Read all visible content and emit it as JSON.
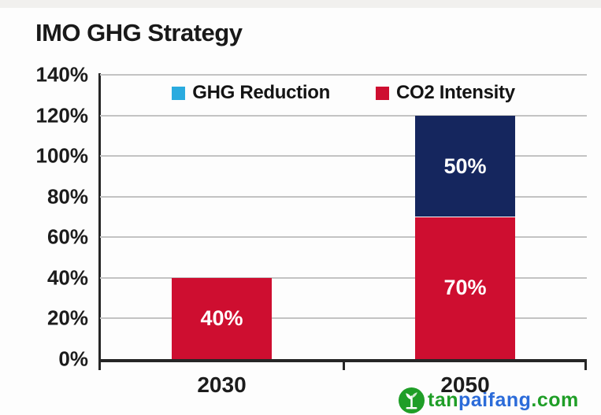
{
  "title": "IMO GHG Strategy",
  "chart_data": {
    "type": "bar",
    "stacked": true,
    "title": "IMO GHG Strategy",
    "categories": [
      "2030",
      "2050"
    ],
    "series": [
      {
        "name": "CO2 Intensity",
        "color": "#ce0e30",
        "values": [
          40,
          70
        ],
        "data_labels": [
          "40%",
          "70%"
        ]
      },
      {
        "name": "GHG Reduction",
        "color": "#15265e",
        "values": [
          0,
          50
        ],
        "data_labels": [
          "",
          "50%"
        ]
      }
    ],
    "legend": [
      {
        "label": "GHG Reduction",
        "swatch_color": "#2aabdf"
      },
      {
        "label": "CO2 Intensity",
        "swatch_color": "#ce0e30"
      }
    ],
    "legend_position": "top-center-inside",
    "grid": true,
    "ylim": [
      0,
      140
    ],
    "ytick_step": 20,
    "yticks": [
      {
        "value": 0,
        "label": "0%"
      },
      {
        "value": 20,
        "label": "20%"
      },
      {
        "value": 40,
        "label": "40%"
      },
      {
        "value": 60,
        "label": "60%"
      },
      {
        "value": 80,
        "label": "80%"
      },
      {
        "value": 100,
        "label": "100%"
      },
      {
        "value": 120,
        "label": "120%"
      },
      {
        "value": 140,
        "label": "140%"
      }
    ]
  },
  "watermark": {
    "logo": "tanpaifang-leaf-logo",
    "segments": [
      {
        "text": "tan",
        "color": "#1f9e27"
      },
      {
        "text": "paifang",
        "color": "#2b6bd9"
      },
      {
        "text": ".com",
        "color": "#1f9e27"
      }
    ]
  }
}
